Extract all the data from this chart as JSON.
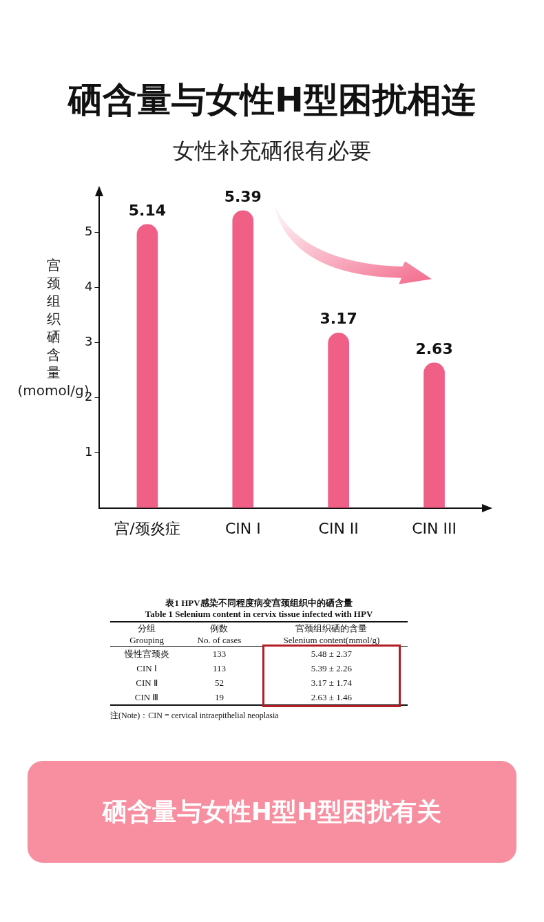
{
  "chart_data": {
    "type": "bar",
    "title": "硒含量与女性H型困扰相连",
    "subtitle": "女性补充硒很有必要",
    "ylabel": "宫颈组织硒含量(momol/g)",
    "categories": [
      "宫/颈炎症",
      "CIN Ⅰ",
      "CIN II",
      "CIN III"
    ],
    "values": [
      5.14,
      5.39,
      3.17,
      2.63
    ],
    "color": "#ef5f86",
    "data_labels": true,
    "ylim": [
      0,
      5.65
    ],
    "yticks": [
      1,
      2,
      3,
      4,
      5
    ],
    "grid": false,
    "legend": false,
    "annotations": [
      "表1 HPV感染不同程度病变宫颈组织中的硒含量",
      "Table 1 Selenium content in cervix tissue infected with HPV",
      "分组",
      "例数",
      "宫颈组织硒的含量",
      "Grouping",
      "No. of cases",
      "Selenium content(mmol/g)",
      "慢性宫颈炎",
      "133",
      "5.48 ± 2.37",
      "CIN Ⅰ",
      "113",
      "5.39 ± 2.26",
      "CIN Ⅱ",
      "52",
      "3.17 ± 1.74",
      "CIN Ⅲ",
      "19",
      "2.63 ± 1.46",
      "注(Note)：CIN = cervical intraepithelial neoplasia",
      "硒含量与女性H型H型困扰有关"
    ]
  }
}
